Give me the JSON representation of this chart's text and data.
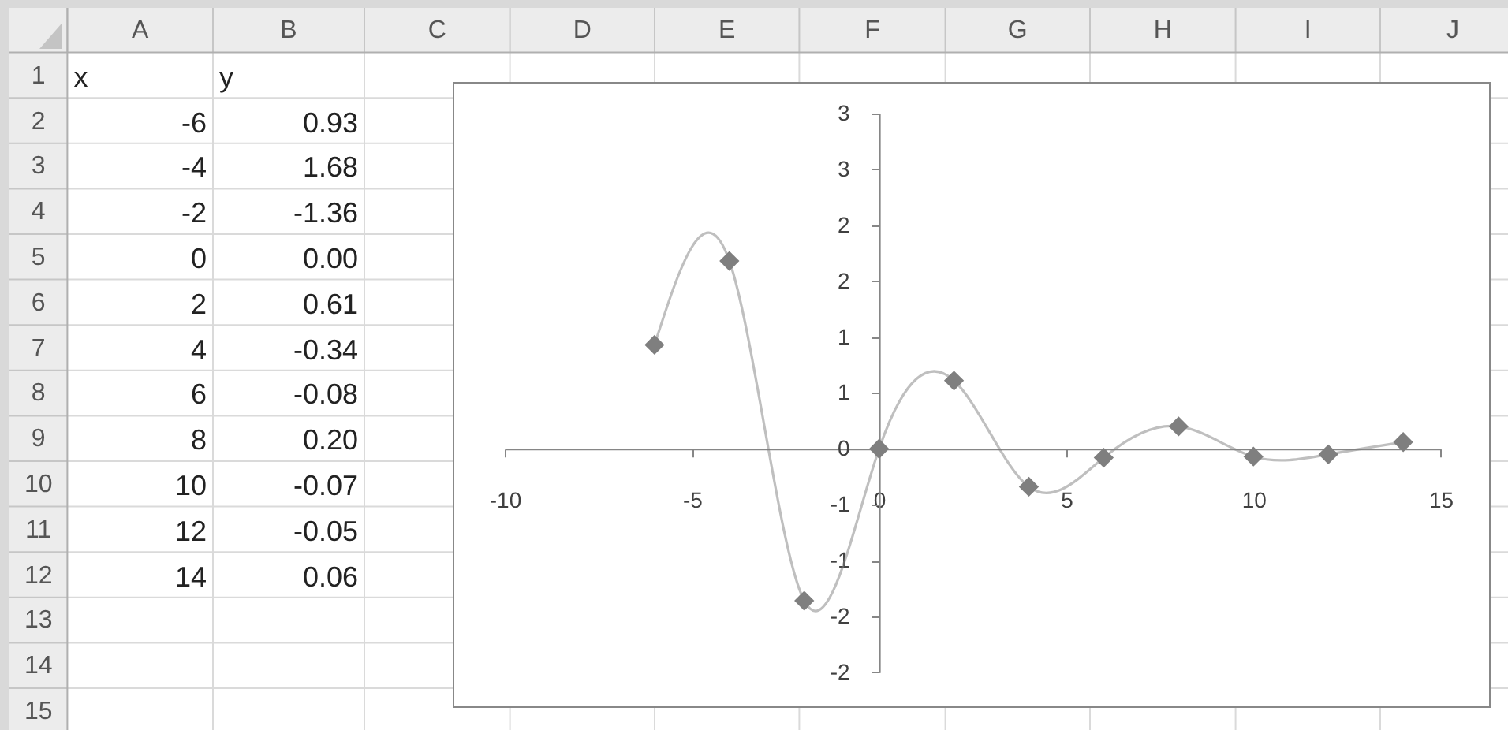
{
  "chart_data": {
    "type": "line",
    "x": [
      -6,
      -4,
      -2,
      0,
      2,
      4,
      6,
      8,
      10,
      12,
      14
    ],
    "series": [
      {
        "color": "#7f7f7f",
        "values": [
          0.93,
          1.68,
          -1.36,
          0,
          0.61,
          -0.34,
          -0.08,
          0.2,
          -0.07,
          -0.05,
          0.06
        ]
      }
    ],
    "xlim": [
      -10,
      15
    ],
    "xticks": [
      -10,
      -5,
      0,
      5,
      10,
      15
    ],
    "ylim": [
      -2,
      3
    ],
    "yticks": [
      -2,
      {
        "value": -1.5,
        "label": "-2"
      },
      -1,
      {
        "value": -0.5,
        "label": "-1"
      },
      0,
      {
        "value": 0.5,
        "label": "1"
      },
      1,
      {
        "value": 1.5,
        "label": "2"
      },
      2,
      {
        "value": 2.5,
        "label": "3"
      },
      3
    ],
    "marker": "diamond",
    "line_style": "solid",
    "annotations": [
      "A",
      "B",
      "C",
      "D",
      "E",
      "F",
      "G",
      "H",
      "I",
      "J",
      "1",
      "2",
      "3",
      "4",
      "5",
      "6",
      "7",
      "8",
      "9",
      "10",
      "11",
      "12",
      "13",
      "14",
      "15",
      "x",
      "y",
      "-6",
      "-4",
      "-2",
      "0",
      "2",
      "4",
      "6",
      "8",
      "10",
      "12",
      "14",
      "0.93",
      "1.68",
      "-1.36",
      "0.00",
      "0.61",
      "-0.34",
      "-0.08",
      "0.20",
      "-0.07",
      "-0.05",
      "0.06"
    ]
  }
}
